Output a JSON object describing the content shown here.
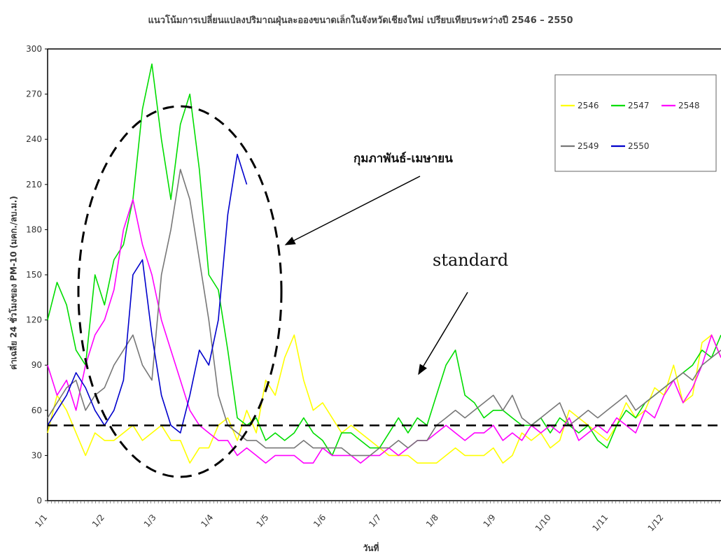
{
  "chart_data": {
    "type": "line",
    "title": "แนวโน้มการเปลี่ยนแปลงปริมาณฝุ่นละอองขนาดเล็กในจังหวัดเชียงใหม่ เปรียบเทียบระหว่างปี 2546 – 2550",
    "xlabel": "วันที่",
    "ylabel": "ค่าเฉลี่ย 24 ชั่วโมงของ PM-10 (มคก./ลบ.ม.)",
    "ylim": [
      0,
      300
    ],
    "yticks": [
      "0",
      "30",
      "60",
      "90",
      "120",
      "150",
      "180",
      "210",
      "240",
      "270",
      "300"
    ],
    "xticks": [
      "1/1",
      "1/2",
      "1/3",
      "1/4",
      "1/5",
      "1/6",
      "1/7",
      "1/8",
      "1/9",
      "1/10",
      "1/11",
      "1/12"
    ],
    "grid": false,
    "legend_position": "top-right",
    "standard_value": 50,
    "series": [
      {
        "name": "2546",
        "color": "#ffff00",
        "values": [
          45,
          70,
          60,
          45,
          30,
          45,
          40,
          40,
          45,
          50,
          40,
          45,
          50,
          40,
          40,
          25,
          35,
          35,
          50,
          55,
          40,
          60,
          45,
          80,
          70,
          95,
          110,
          80,
          60,
          65,
          55,
          45,
          50,
          45,
          40,
          35,
          30,
          30,
          30,
          25,
          25,
          25,
          30,
          35,
          30,
          30,
          30,
          35,
          25,
          30,
          45,
          40,
          45,
          35,
          40,
          60,
          55,
          50,
          45,
          40,
          50,
          65,
          55,
          60,
          75,
          70,
          90,
          65,
          70,
          105,
          110,
          95
        ]
      },
      {
        "name": "2547",
        "color": "#00dd00",
        "values": [
          120,
          145,
          130,
          100,
          90,
          150,
          130,
          160,
          170,
          200,
          260,
          290,
          240,
          200,
          250,
          270,
          220,
          150,
          140,
          100,
          55,
          50,
          55,
          40,
          45,
          40,
          45,
          55,
          45,
          40,
          30,
          45,
          45,
          40,
          35,
          35,
          45,
          55,
          45,
          55,
          50,
          70,
          90,
          100,
          70,
          65,
          55,
          60,
          60,
          55,
          50,
          50,
          55,
          45,
          55,
          50,
          45,
          50,
          40,
          35,
          50,
          60,
          55,
          65,
          70,
          75,
          80,
          85,
          90,
          100,
          95,
          110
        ]
      },
      {
        "name": "2548",
        "color": "#ff00ff",
        "values": [
          90,
          70,
          80,
          60,
          90,
          110,
          120,
          140,
          180,
          200,
          170,
          150,
          120,
          100,
          80,
          60,
          50,
          45,
          40,
          40,
          30,
          35,
          30,
          25,
          30,
          30,
          30,
          25,
          25,
          35,
          30,
          30,
          30,
          25,
          30,
          30,
          35,
          30,
          35,
          40,
          40,
          45,
          50,
          45,
          40,
          45,
          45,
          50,
          40,
          45,
          40,
          50,
          45,
          50,
          45,
          55,
          40,
          45,
          50,
          45,
          55,
          50,
          45,
          60,
          55,
          70,
          80,
          65,
          75,
          90,
          110,
          95
        ]
      },
      {
        "name": "2549",
        "color": "#777777",
        "values": [
          55,
          65,
          75,
          80,
          60,
          70,
          75,
          90,
          100,
          110,
          90,
          80,
          150,
          180,
          220,
          200,
          160,
          120,
          70,
          50,
          45,
          40,
          40,
          35,
          35,
          35,
          35,
          40,
          35,
          35,
          35,
          35,
          30,
          30,
          30,
          35,
          35,
          40,
          35,
          40,
          40,
          50,
          55,
          60,
          55,
          60,
          65,
          70,
          60,
          70,
          55,
          50,
          55,
          60,
          65,
          50,
          55,
          60,
          55,
          60,
          65,
          70,
          60,
          65,
          70,
          75,
          80,
          85,
          80,
          90,
          95,
          100
        ]
      },
      {
        "name": "2550",
        "color": "#0000cc",
        "values": [
          50,
          60,
          70,
          85,
          75,
          60,
          50,
          60,
          80,
          150,
          160,
          110,
          70,
          50,
          45,
          70,
          100,
          90,
          120,
          190,
          230,
          210
        ]
      }
    ]
  },
  "annotations": {
    "months_label": "กุมภาพันธ์-เมษายน",
    "standard_label": "standard"
  }
}
